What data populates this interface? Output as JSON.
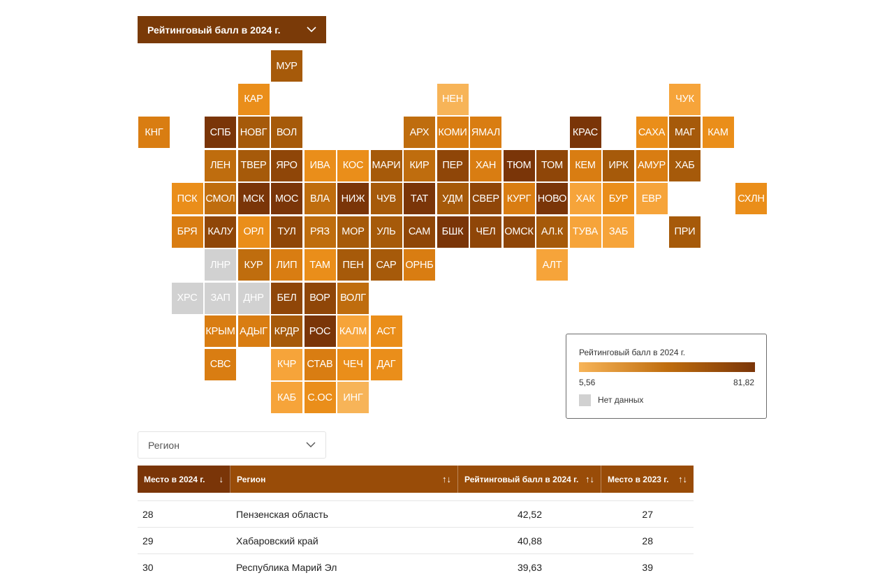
{
  "selector": {
    "label": "Рейтинговый балл в 2024 г."
  },
  "colors": {
    "c1": "#7a3508",
    "c2": "#8f4608",
    "c3": "#a65a0a",
    "c4": "#bf6d0e",
    "c5": "#d97d12",
    "c6": "#ea8e1a",
    "c7": "#f6a43a",
    "c8": "#f7b458",
    "nodata": "#d1d1d1"
  },
  "tiles": [
    {
      "label": "МУР",
      "shade": "c3"
    },
    {
      "label": "КАР",
      "shade": "c6"
    },
    {
      "label": "НЕН",
      "shade": "c8"
    },
    {
      "label": "ЧУК",
      "shade": "c7"
    },
    {
      "label": "КНГ",
      "shade": "c5"
    },
    {
      "label": "СПБ",
      "shade": "c1"
    },
    {
      "label": "НОВГ",
      "shade": "c3"
    },
    {
      "label": "ВОЛ",
      "shade": "c3"
    },
    {
      "label": "АРХ",
      "shade": "c4"
    },
    {
      "label": "КОМИ",
      "shade": "c5"
    },
    {
      "label": "ЯМАЛ",
      "shade": "c5"
    },
    {
      "label": "КРАС",
      "shade": "c1"
    },
    {
      "label": "САХА",
      "shade": "c6"
    },
    {
      "label": "МАГ",
      "shade": "c3"
    },
    {
      "label": "КАМ",
      "shade": "c6"
    },
    {
      "label": "ЛЕН",
      "shade": "c4"
    },
    {
      "label": "ТВЕР",
      "shade": "c3"
    },
    {
      "label": "ЯРО",
      "shade": "c2"
    },
    {
      "label": "ИВА",
      "shade": "c6"
    },
    {
      "label": "КОС",
      "shade": "c6"
    },
    {
      "label": "МАРИ",
      "shade": "c3"
    },
    {
      "label": "КИР",
      "shade": "c4"
    },
    {
      "label": "ПЕР",
      "shade": "c2"
    },
    {
      "label": "ХАН",
      "shade": "c5"
    },
    {
      "label": "ТЮМ",
      "shade": "c1"
    },
    {
      "label": "ТОМ",
      "shade": "c2"
    },
    {
      "label": "КЕМ",
      "shade": "c5"
    },
    {
      "label": "ИРК",
      "shade": "c3"
    },
    {
      "label": "АМУР",
      "shade": "c5"
    },
    {
      "label": "ХАБ",
      "shade": "c3"
    },
    {
      "label": "ПСК",
      "shade": "c6"
    },
    {
      "label": "СМОЛ",
      "shade": "c4"
    },
    {
      "label": "МСК",
      "shade": "c1"
    },
    {
      "label": "МОС",
      "shade": "c1"
    },
    {
      "label": "ВЛА",
      "shade": "c4"
    },
    {
      "label": "НИЖ",
      "shade": "c1"
    },
    {
      "label": "ЧУВ",
      "shade": "c3"
    },
    {
      "label": "ТАТ",
      "shade": "c1"
    },
    {
      "label": "УДМ",
      "shade": "c3"
    },
    {
      "label": "СВЕР",
      "shade": "c2"
    },
    {
      "label": "КУРГ",
      "shade": "c5"
    },
    {
      "label": "НОВО",
      "shade": "c1"
    },
    {
      "label": "ХАК",
      "shade": "c7"
    },
    {
      "label": "БУР",
      "shade": "c6"
    },
    {
      "label": "ЕВР",
      "shade": "c7"
    },
    {
      "label": "СХЛН",
      "shade": "c6"
    },
    {
      "label": "БРЯ",
      "shade": "c5"
    },
    {
      "label": "КАЛУ",
      "shade": "c2"
    },
    {
      "label": "ОРЛ",
      "shade": "c6"
    },
    {
      "label": "ТУЛ",
      "shade": "c2"
    },
    {
      "label": "РЯЗ",
      "shade": "c4"
    },
    {
      "label": "МОР",
      "shade": "c3"
    },
    {
      "label": "УЛЬ",
      "shade": "c3"
    },
    {
      "label": "САМ",
      "shade": "c2"
    },
    {
      "label": "БШК",
      "shade": "c1"
    },
    {
      "label": "ЧЕЛ",
      "shade": "c2"
    },
    {
      "label": "ОМСК",
      "shade": "c2"
    },
    {
      "label": "АЛ.К",
      "shade": "c3"
    },
    {
      "label": "ТУВА",
      "shade": "c7"
    },
    {
      "label": "ЗАБ",
      "shade": "c7"
    },
    {
      "label": "ПРИ",
      "shade": "c3"
    },
    {
      "label": "ЛНР",
      "shade": "nodata"
    },
    {
      "label": "КУР",
      "shade": "c4"
    },
    {
      "label": "ЛИП",
      "shade": "c5"
    },
    {
      "label": "ТАМ",
      "shade": "c6"
    },
    {
      "label": "ПЕН",
      "shade": "c3"
    },
    {
      "label": "САР",
      "shade": "c3"
    },
    {
      "label": "ОРНБ",
      "shade": "c5"
    },
    {
      "label": "АЛТ",
      "shade": "c7"
    },
    {
      "label": "ХРС",
      "shade": "nodata"
    },
    {
      "label": "ЗАП",
      "shade": "nodata"
    },
    {
      "label": "ДНР",
      "shade": "nodata"
    },
    {
      "label": "БЕЛ",
      "shade": "c2"
    },
    {
      "label": "ВОР",
      "shade": "c2"
    },
    {
      "label": "ВОЛГ",
      "shade": "c4"
    },
    {
      "label": "КРЫМ",
      "shade": "c5"
    },
    {
      "label": "АДЫГ",
      "shade": "c5"
    },
    {
      "label": "КРДР",
      "shade": "c3"
    },
    {
      "label": "РОС",
      "shade": "c1"
    },
    {
      "label": "КАЛМ",
      "shade": "c7"
    },
    {
      "label": "АСТ",
      "shade": "c6"
    },
    {
      "label": "СВС",
      "shade": "c5"
    },
    {
      "label": "КЧР",
      "shade": "c7"
    },
    {
      "label": "СТАВ",
      "shade": "c5"
    },
    {
      "label": "ЧЕЧ",
      "shade": "c6"
    },
    {
      "label": "ДАГ",
      "shade": "c6"
    },
    {
      "label": "КАБ",
      "shade": "c7"
    },
    {
      "label": "С.ОС",
      "shade": "c6"
    },
    {
      "label": "ИНГ",
      "shade": "c8"
    }
  ],
  "legend": {
    "title": "Рейтинговый балл в 2024 г.",
    "min": "5,56",
    "max": "81,82",
    "nodata": "Нет данных"
  },
  "region_filter": {
    "placeholder": "Регион"
  },
  "table": {
    "headers": [
      {
        "label": "Место в 2024 г.",
        "sort": "↓",
        "color": "#7a3508"
      },
      {
        "label": "Регион",
        "sort": "↑↓",
        "color": "#994c08"
      },
      {
        "label": "Рейтинговый балл в 2024 г.",
        "sort": "↑↓",
        "color": "#994c08"
      },
      {
        "label": "Место в 2023 г.",
        "sort": "↑↓",
        "color": "#994c08"
      }
    ],
    "rows": [
      {
        "rank": "28",
        "region": "Пензенская область",
        "score": "42,52",
        "prev": "27"
      },
      {
        "rank": "29",
        "region": "Хабаровский край",
        "score": "40,88",
        "prev": "28"
      },
      {
        "rank": "30",
        "region": "Республика Марий Эл",
        "score": "39,63",
        "prev": "39"
      }
    ]
  }
}
